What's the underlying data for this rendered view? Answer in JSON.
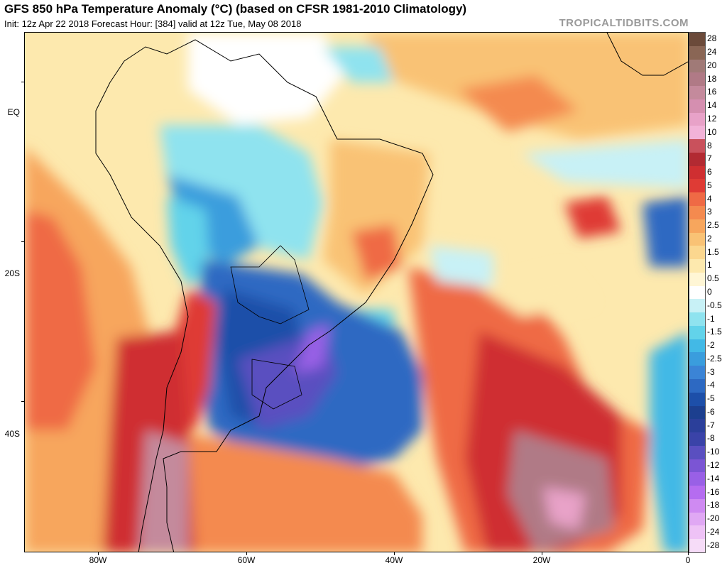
{
  "header": {
    "title": "GFS 850 hPa Temperature Anomaly (°C) (based on CFSR 1981-2010 Climatology)",
    "subtitle": "Init: 12z Apr 22 2018   Forecast Hour: [384]   valid at 12z Tue, May 08 2018",
    "site": "TROPICALTIDBITS.COM"
  },
  "axes": {
    "lat_labels": [
      "EQ",
      "20S",
      "40S"
    ],
    "lon_labels": [
      "80W",
      "60W",
      "40W",
      "20W",
      "0"
    ]
  },
  "colorbar": {
    "labels": [
      "28",
      "24",
      "20",
      "18",
      "16",
      "14",
      "12",
      "10",
      "8",
      "7",
      "6",
      "5",
      "4",
      "3",
      "2.5",
      "2",
      "1.5",
      "1",
      "0.5",
      "0",
      "-0.5",
      "-1",
      "-1.5",
      "-2",
      "-2.5",
      "-3",
      "-4",
      "-5",
      "-6",
      "-7",
      "-8",
      "-10",
      "-12",
      "-14",
      "-16",
      "-18",
      "-20",
      "-24",
      "-28"
    ],
    "colors": [
      "#6b4a3a",
      "#8a6655",
      "#a07a77",
      "#b07a86",
      "#c48a9c",
      "#d58fb0",
      "#e8a2c8",
      "#f2b3d8",
      "#c9515c",
      "#b22a32",
      "#cf2f31",
      "#df3b35",
      "#ef6a45",
      "#f48a4f",
      "#f7a65d",
      "#f9c275",
      "#fbd78f",
      "#fde9ae",
      "#fff6d5",
      "#ffffff",
      "#c8f1f6",
      "#8fe3ef",
      "#62d3ea",
      "#42b9e6",
      "#3a9ddd",
      "#3b84d6",
      "#2d69c2",
      "#1d4fa9",
      "#1c3f8f",
      "#2b3f9a",
      "#3a43a8",
      "#5a4fc0",
      "#7b55d4",
      "#9960e6",
      "#b56cf0",
      "#cf8af2",
      "#e0a8f4",
      "#eec2f6",
      "#f6dcf8"
    ]
  }
}
